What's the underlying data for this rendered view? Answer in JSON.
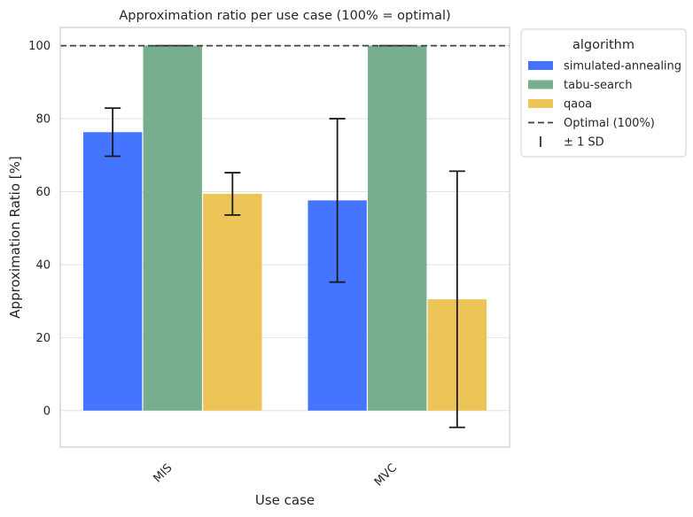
{
  "chart_data": {
    "type": "bar",
    "title": "Approximation ratio per use case (100% = optimal)",
    "xlabel": "Use case",
    "ylabel": "Approximation Ratio [%]",
    "categories": [
      "MIS",
      "MVC"
    ],
    "ylim": [
      -10,
      105
    ],
    "yticks": [
      "0",
      "20",
      "40",
      "60",
      "80",
      "100"
    ],
    "grid": "horizontal",
    "legend_position": "outside top-right",
    "legend_title": "algorithm",
    "series": [
      {
        "name": "simulated-annealing",
        "color": "#4575ff",
        "values": [
          76.3,
          57.6
        ],
        "sd": [
          6.6,
          22.4
        ]
      },
      {
        "name": "tabu-search",
        "color": "#77ae8d",
        "values": [
          100,
          100
        ],
        "sd": [
          0,
          0
        ]
      },
      {
        "name": "qaoa",
        "color": "#ecc458",
        "values": [
          59.4,
          30.5
        ],
        "sd": [
          5.8,
          35.1
        ]
      }
    ],
    "reference_line": {
      "value": 100,
      "label": "Optimal (100%)",
      "color": "#404040"
    },
    "errorbar_legend": "± 1 SD"
  }
}
